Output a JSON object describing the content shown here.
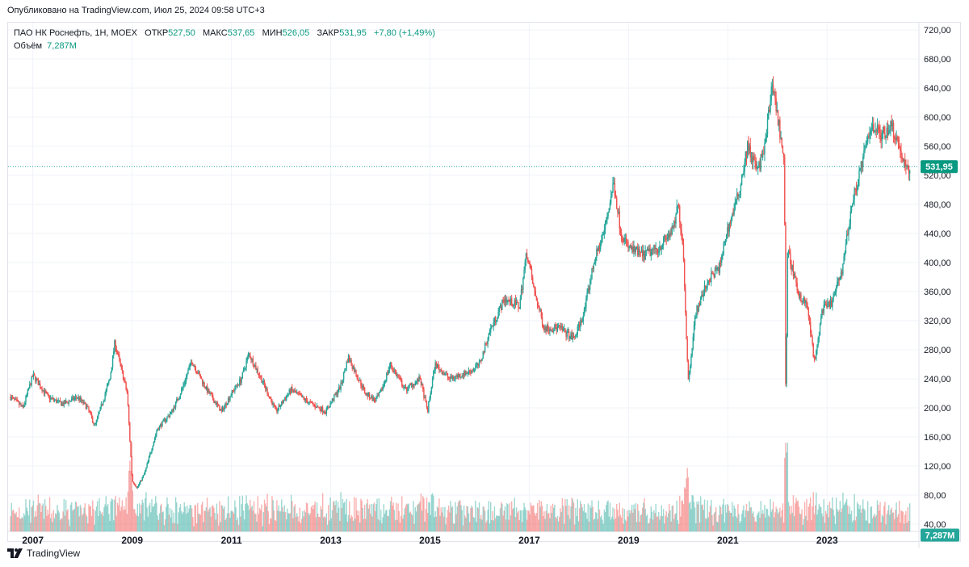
{
  "header": {
    "published": "Опубликовано на TradingView.com, Июл 25, 2024 09:58 UTC+3"
  },
  "legend": {
    "symbol": "ПАО НК Роснефть, 1Н, MOEX",
    "open_label": "ОТКР",
    "open": "527,50",
    "high_label": "МАКС",
    "high": "537,65",
    "low_label": "МИН",
    "low": "526,05",
    "close_label": "ЗАКР",
    "close": "531,95",
    "change": "+7,80 (+1,49%)",
    "volume_label": "Объём",
    "volume": "7,287M"
  },
  "footer": {
    "brand": "TradingView"
  },
  "colors": {
    "up": "#26a69a",
    "down": "#ef5350",
    "up_text": "#089981",
    "grid": "#f0f3fa",
    "axis_text": "#131722"
  },
  "chart_data": {
    "type": "candlestick",
    "title": "ПАО НК Роснефть, 1Н, MOEX",
    "y_ticks": [
      "40,00",
      "80,00",
      "120,00",
      "160,00",
      "200,00",
      "240,00",
      "280,00",
      "320,00",
      "360,00",
      "400,00",
      "440,00",
      "480,00",
      "520,00",
      "560,00",
      "600,00",
      "640,00",
      "680,00",
      "720,00"
    ],
    "x_ticks": [
      "2007",
      "2009",
      "2011",
      "2013",
      "2015",
      "2017",
      "2019",
      "2021",
      "2023"
    ],
    "ylim": [
      30,
      730
    ],
    "xlim": [
      2006.5,
      2024.85
    ],
    "last_price": 531.95,
    "last_price_label": "531,95",
    "volume_label": "7,287M",
    "price_path": [
      [
        2006.55,
        215
      ],
      [
        2006.8,
        200
      ],
      [
        2007.0,
        245
      ],
      [
        2007.3,
        215
      ],
      [
        2007.6,
        205
      ],
      [
        2007.9,
        215
      ],
      [
        2008.1,
        200
      ],
      [
        2008.25,
        175
      ],
      [
        2008.55,
        240
      ],
      [
        2008.65,
        290
      ],
      [
        2008.9,
        220
      ],
      [
        2009.0,
        100
      ],
      [
        2009.1,
        90
      ],
      [
        2009.25,
        110
      ],
      [
        2009.5,
        170
      ],
      [
        2009.8,
        195
      ],
      [
        2010.0,
        225
      ],
      [
        2010.2,
        265
      ],
      [
        2010.5,
        225
      ],
      [
        2010.8,
        195
      ],
      [
        2011.0,
        220
      ],
      [
        2011.2,
        240
      ],
      [
        2011.35,
        275
      ],
      [
        2011.6,
        240
      ],
      [
        2011.9,
        195
      ],
      [
        2012.2,
        225
      ],
      [
        2012.5,
        210
      ],
      [
        2012.9,
        195
      ],
      [
        2013.2,
        230
      ],
      [
        2013.35,
        270
      ],
      [
        2013.7,
        220
      ],
      [
        2013.9,
        210
      ],
      [
        2014.0,
        220
      ],
      [
        2014.2,
        260
      ],
      [
        2014.5,
        225
      ],
      [
        2014.8,
        240
      ],
      [
        2014.95,
        195
      ],
      [
        2015.1,
        260
      ],
      [
        2015.4,
        240
      ],
      [
        2015.8,
        250
      ],
      [
        2016.0,
        260
      ],
      [
        2016.2,
        305
      ],
      [
        2016.5,
        350
      ],
      [
        2016.8,
        340
      ],
      [
        2016.95,
        415
      ],
      [
        2017.1,
        360
      ],
      [
        2017.3,
        310
      ],
      [
        2017.6,
        310
      ],
      [
        2017.9,
        295
      ],
      [
        2018.1,
        330
      ],
      [
        2018.3,
        400
      ],
      [
        2018.5,
        440
      ],
      [
        2018.7,
        510
      ],
      [
        2018.85,
        440
      ],
      [
        2019.0,
        420
      ],
      [
        2019.3,
        410
      ],
      [
        2019.6,
        420
      ],
      [
        2019.9,
        445
      ],
      [
        2020.0,
        480
      ],
      [
        2020.1,
        420
      ],
      [
        2020.2,
        235
      ],
      [
        2020.35,
        330
      ],
      [
        2020.6,
        375
      ],
      [
        2020.85,
        395
      ],
      [
        2020.95,
        435
      ],
      [
        2021.2,
        490
      ],
      [
        2021.4,
        560
      ],
      [
        2021.6,
        525
      ],
      [
        2021.75,
        560
      ],
      [
        2021.9,
        650
      ],
      [
        2022.0,
        600
      ],
      [
        2022.1,
        560
      ],
      [
        2022.14,
        530
      ],
      [
        2022.17,
        175
      ],
      [
        2022.2,
        420
      ],
      [
        2022.4,
        360
      ],
      [
        2022.6,
        340
      ],
      [
        2022.75,
        260
      ],
      [
        2022.9,
        335
      ],
      [
        2023.1,
        345
      ],
      [
        2023.3,
        390
      ],
      [
        2023.5,
        480
      ],
      [
        2023.75,
        550
      ],
      [
        2023.9,
        590
      ],
      [
        2024.1,
        575
      ],
      [
        2024.3,
        590
      ],
      [
        2024.45,
        560
      ],
      [
        2024.6,
        525
      ],
      [
        2024.67,
        532
      ]
    ]
  }
}
